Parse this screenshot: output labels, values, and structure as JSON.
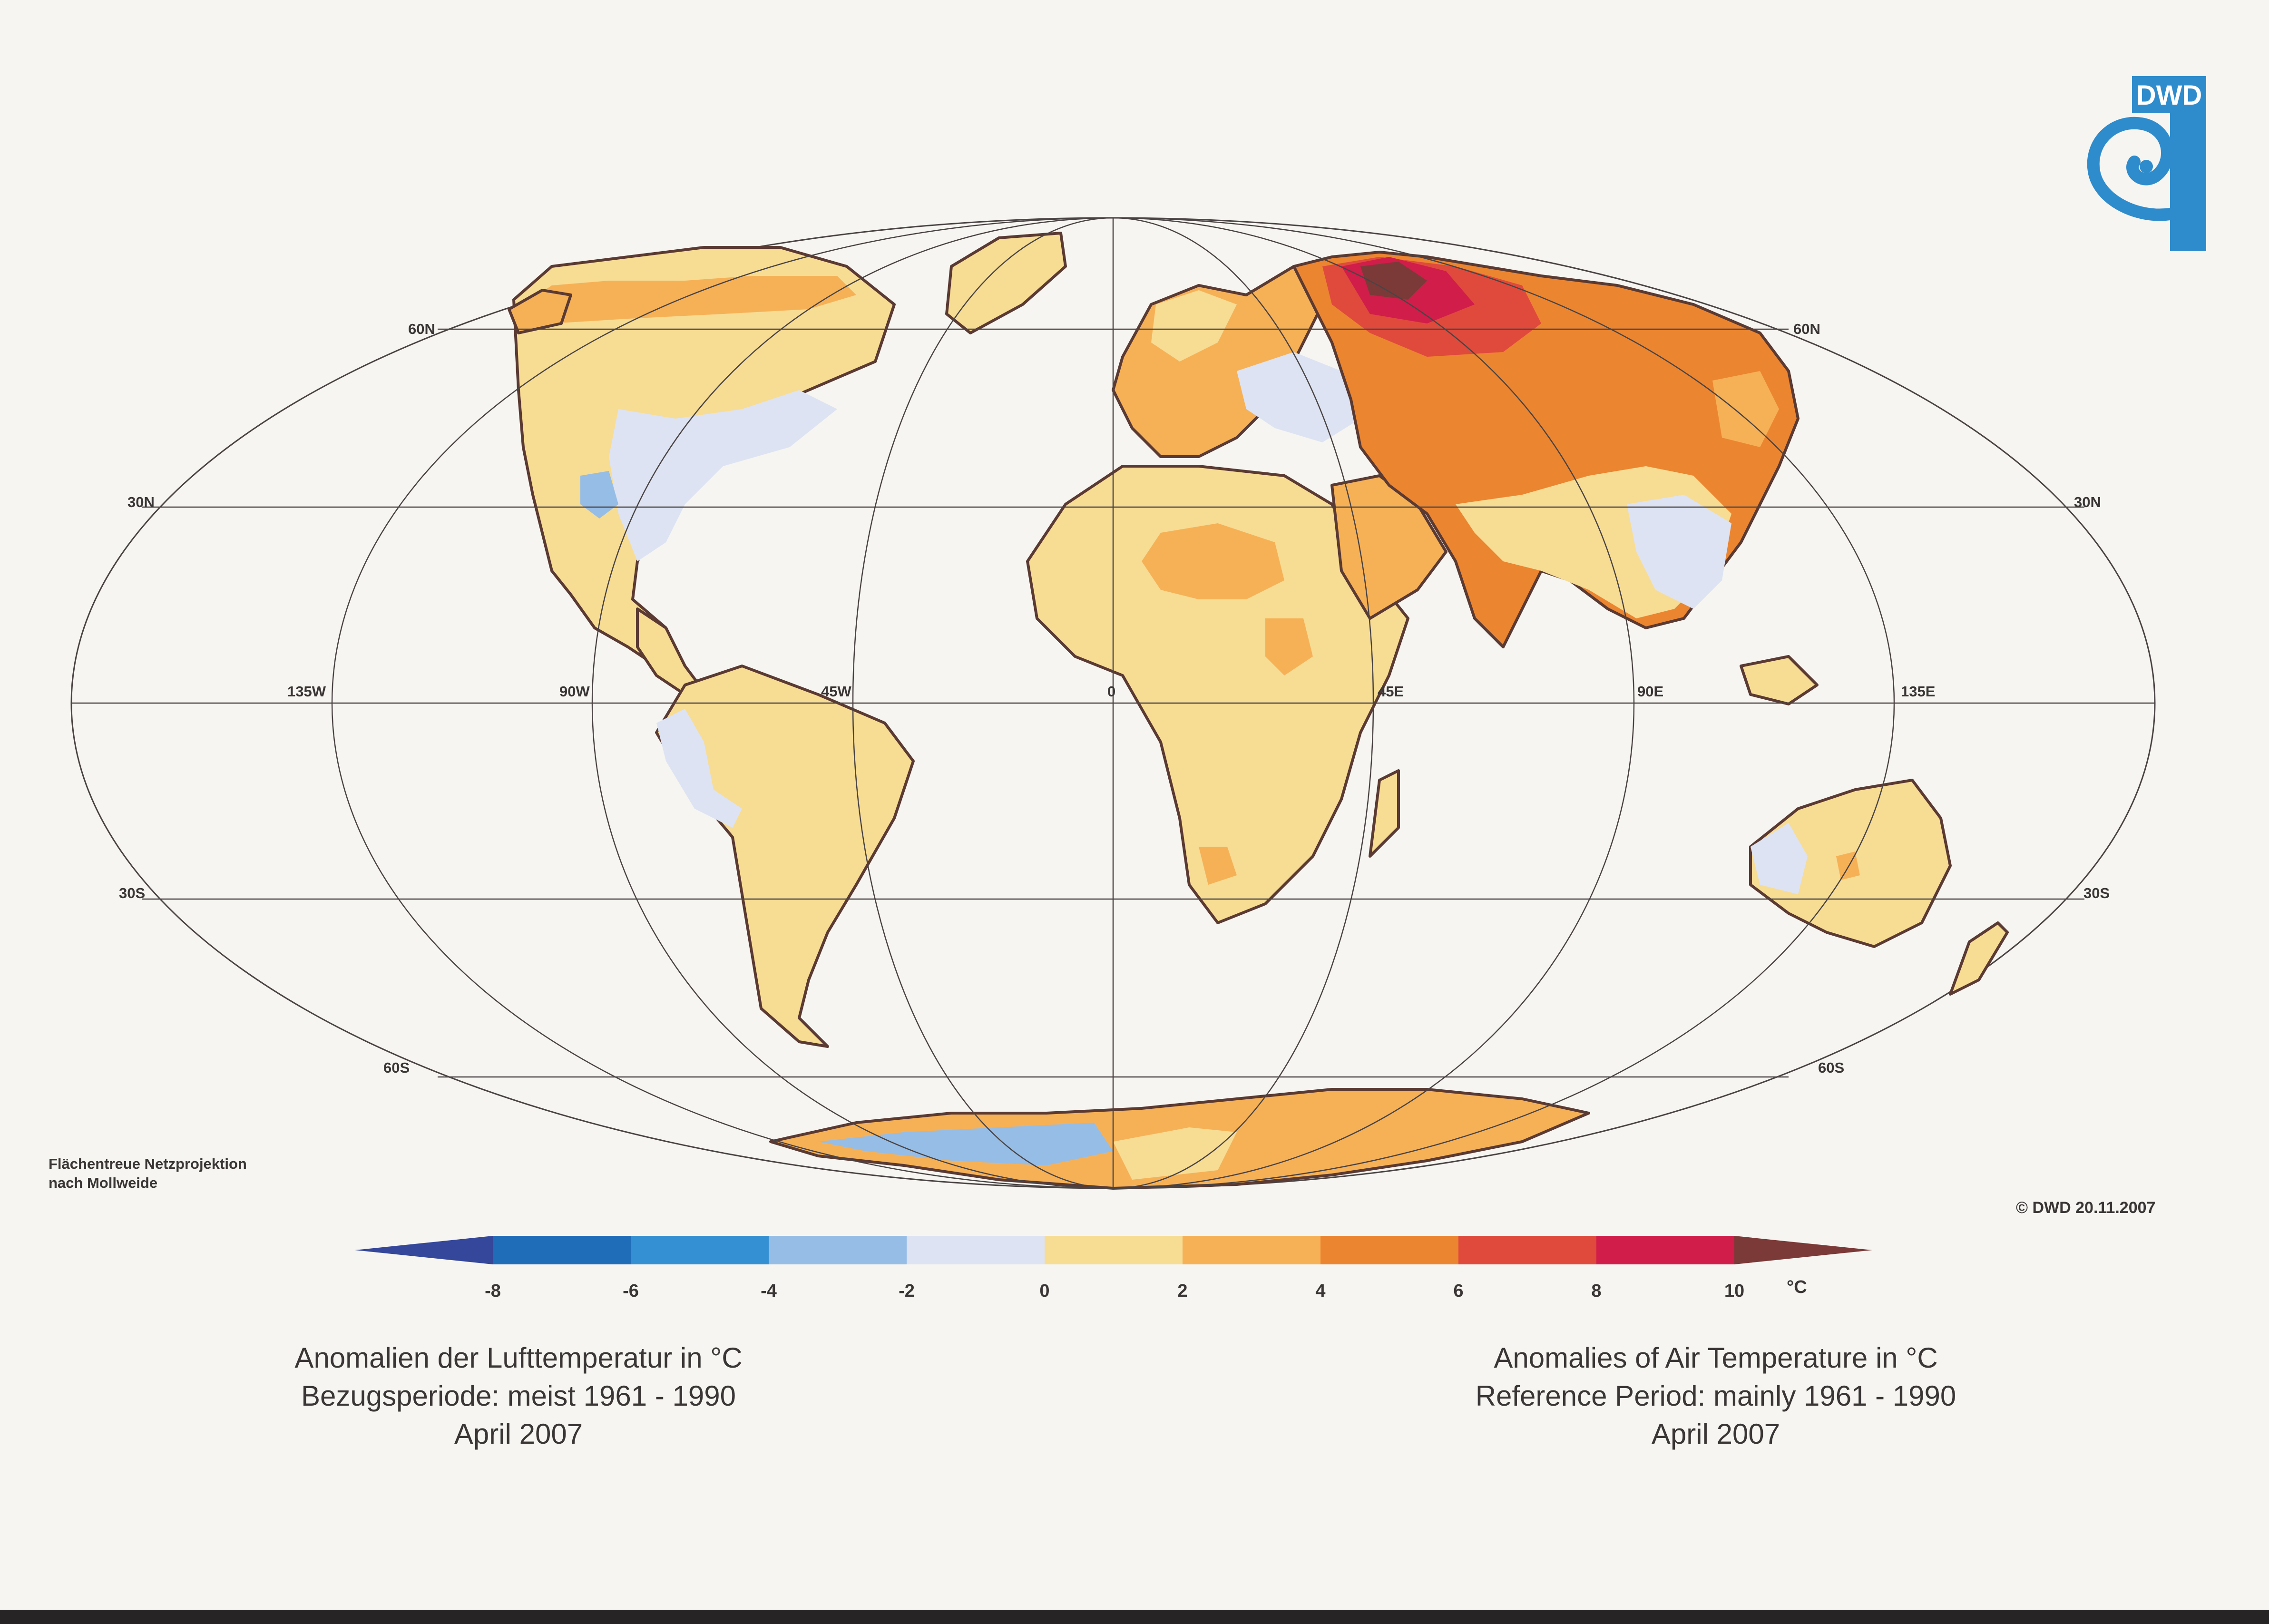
{
  "logo": {
    "text": "DWD",
    "color": "#2f8ccc"
  },
  "projection_note": {
    "line1": "Flächentreue Netzprojektion",
    "line2": "nach Mollweide"
  },
  "copyright": "© DWD 20.11.2007",
  "graticule": {
    "lat_labels": [
      "60N",
      "30N",
      "30S",
      "60S"
    ],
    "lon_labels": [
      "135W",
      "90W",
      "45W",
      "0",
      "45E",
      "90E",
      "135E"
    ]
  },
  "colorbar": {
    "ticks": [
      "-8",
      "-6",
      "-4",
      "-2",
      "0",
      "2",
      "4",
      "6",
      "8",
      "10"
    ],
    "unit": "°C",
    "colors": [
      "#35479a",
      "#1f6db9",
      "#3490d2",
      "#96bde6",
      "#dde3f2",
      "#f7dc94",
      "#f6b157",
      "#ec8530",
      "#df4a3d",
      "#d11d4a",
      "#7b3a38"
    ]
  },
  "title_de": {
    "line1": "Anomalien der Lufttemperatur in °C",
    "line2": "Bezugsperiode: meist 1961 - 1990",
    "line3": "April 2007"
  },
  "title_en": {
    "line1": "Anomalies of Air Temperature in °C",
    "line2": "Reference Period: mainly 1961 - 1990",
    "line3": "April 2007"
  },
  "map_legend": {
    "palette": {
      "neg4": "#96bde6",
      "neg2": "#dde3f2",
      "pos0": "#f7dc94",
      "pos2": "#f6b157",
      "pos4": "#ec8530",
      "pos6": "#df4a3d",
      "pos8": "#d11d4a",
      "pos10": "#7b3a38",
      "ocean": "#f6f5f1",
      "coast": "#5a3a32"
    }
  }
}
